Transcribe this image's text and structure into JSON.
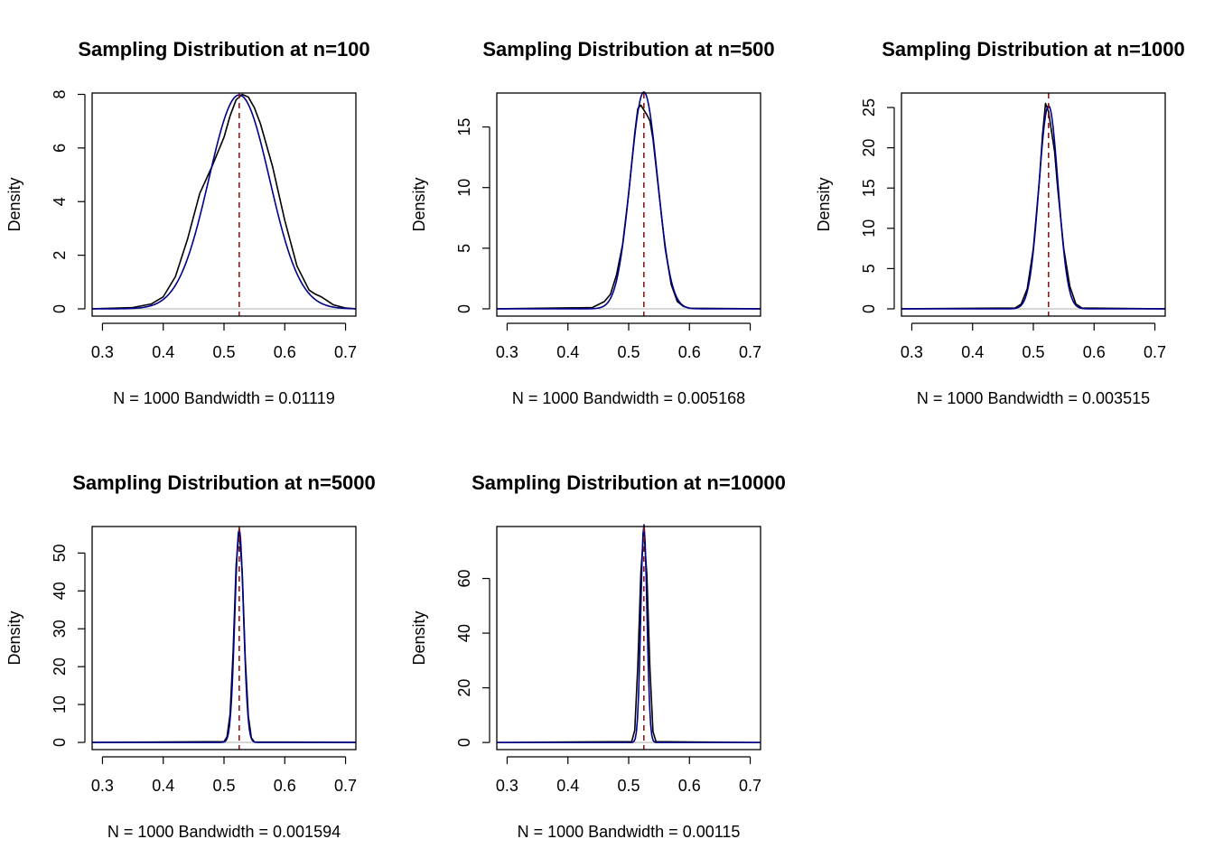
{
  "colors": {
    "kde": "#000000",
    "normal": "#00008b",
    "mean_line": "#8b1a1a",
    "zero_line": "#bebebe"
  },
  "chart_data": [
    {
      "type": "line",
      "title": "Sampling Distribution at n=100",
      "ylabel": "Density",
      "subtitle": "N = 1000   Bandwidth = 0.01119",
      "xlim": [
        0.283,
        0.717
      ],
      "ylim": [
        -0.27,
        8.05
      ],
      "x_ticks": [
        0.3,
        0.4,
        0.5,
        0.6,
        0.7
      ],
      "y_ticks": [
        0,
        2,
        4,
        6,
        8
      ],
      "mean": 0.525,
      "sd": 0.05,
      "series": [
        {
          "kind": "kde",
          "x": [
            0.283,
            0.35,
            0.38,
            0.4,
            0.42,
            0.44,
            0.46,
            0.48,
            0.5,
            0.51,
            0.52,
            0.53,
            0.54,
            0.55,
            0.56,
            0.58,
            0.6,
            0.62,
            0.64,
            0.65,
            0.66,
            0.67,
            0.68,
            0.7,
            0.717
          ],
          "y": [
            0,
            0.05,
            0.18,
            0.45,
            1.2,
            2.6,
            4.3,
            5.3,
            6.4,
            7.2,
            7.8,
            8.0,
            7.9,
            7.5,
            6.9,
            5.3,
            3.3,
            1.6,
            0.7,
            0.55,
            0.45,
            0.3,
            0.15,
            0.03,
            0
          ]
        },
        {
          "kind": "normal"
        }
      ]
    },
    {
      "type": "line",
      "title": "Sampling Distribution at n=500",
      "ylabel": "Density",
      "subtitle": "N = 1000   Bandwidth = 0.005168",
      "xlim": [
        0.283,
        0.717
      ],
      "ylim": [
        -0.6,
        17.8
      ],
      "x_ticks": [
        0.3,
        0.4,
        0.5,
        0.6,
        0.7
      ],
      "y_ticks": [
        0,
        5,
        10,
        15
      ],
      "mean": 0.525,
      "sd": 0.0223,
      "series": [
        {
          "kind": "kde",
          "x": [
            0.283,
            0.44,
            0.46,
            0.47,
            0.48,
            0.49,
            0.5,
            0.51,
            0.515,
            0.52,
            0.525,
            0.53,
            0.535,
            0.54,
            0.55,
            0.56,
            0.57,
            0.58,
            0.59,
            0.6,
            0.717
          ],
          "y": [
            0,
            0.1,
            0.6,
            1.2,
            2.8,
            5.3,
            9.5,
            14.5,
            16.5,
            16.8,
            16.4,
            16.0,
            15.5,
            14.0,
            9.5,
            5.0,
            2.0,
            0.6,
            0.2,
            0.05,
            0
          ]
        },
        {
          "kind": "normal"
        }
      ]
    },
    {
      "type": "line",
      "title": "Sampling Distribution at n=1000",
      "ylabel": "Density",
      "subtitle": "N = 1000   Bandwidth = 0.003515",
      "xlim": [
        0.283,
        0.717
      ],
      "ylim": [
        -0.9,
        26.8
      ],
      "x_ticks": [
        0.3,
        0.4,
        0.5,
        0.6,
        0.7
      ],
      "y_ticks": [
        0,
        5,
        10,
        15,
        20,
        25
      ],
      "mean": 0.525,
      "sd": 0.0158,
      "series": [
        {
          "kind": "kde",
          "x": [
            0.283,
            0.47,
            0.48,
            0.49,
            0.5,
            0.51,
            0.515,
            0.52,
            0.525,
            0.53,
            0.535,
            0.54,
            0.55,
            0.56,
            0.57,
            0.58,
            0.717
          ],
          "y": [
            0,
            0.1,
            0.6,
            2.5,
            7.5,
            16.0,
            21.5,
            25.5,
            24.5,
            22.0,
            19.5,
            15.0,
            7.5,
            2.8,
            0.6,
            0.1,
            0
          ]
        },
        {
          "kind": "normal"
        }
      ]
    },
    {
      "type": "line",
      "title": "Sampling Distribution at n=5000",
      "ylabel": "Density",
      "subtitle": "N = 1000   Bandwidth = 0.001594",
      "xlim": [
        0.283,
        0.717
      ],
      "ylim": [
        -1.9,
        57.0
      ],
      "x_ticks": [
        0.3,
        0.4,
        0.5,
        0.6,
        0.7
      ],
      "y_ticks": [
        0,
        10,
        20,
        30,
        40,
        50
      ],
      "mean": 0.525,
      "sd": 0.00706,
      "series": [
        {
          "kind": "kde",
          "x": [
            0.283,
            0.5,
            0.505,
            0.51,
            0.515,
            0.52,
            0.525,
            0.53,
            0.535,
            0.54,
            0.545,
            0.55,
            0.717
          ],
          "y": [
            0,
            0.2,
            1.5,
            7.5,
            24.0,
            47.0,
            56.0,
            45.0,
            22.0,
            7.0,
            1.2,
            0.1,
            0
          ]
        },
        {
          "kind": "normal"
        }
      ]
    },
    {
      "type": "line",
      "title": "Sampling Distribution at n=10000",
      "ylabel": "Density",
      "subtitle": "N = 1000   Bandwidth = 0.00115",
      "xlim": [
        0.283,
        0.717
      ],
      "ylim": [
        -2.6,
        79.0
      ],
      "x_ticks": [
        0.3,
        0.4,
        0.5,
        0.6,
        0.7
      ],
      "y_ticks": [
        0,
        20,
        40,
        60
      ],
      "mean": 0.525,
      "sd": 0.005,
      "series": [
        {
          "kind": "kde",
          "x": [
            0.283,
            0.505,
            0.51,
            0.515,
            0.52,
            0.525,
            0.53,
            0.535,
            0.54,
            0.545,
            0.717
          ],
          "y": [
            0,
            0.3,
            4.5,
            28.0,
            62.0,
            78.0,
            61.0,
            27.0,
            4.0,
            0.3,
            0
          ]
        },
        {
          "kind": "normal"
        }
      ]
    }
  ]
}
